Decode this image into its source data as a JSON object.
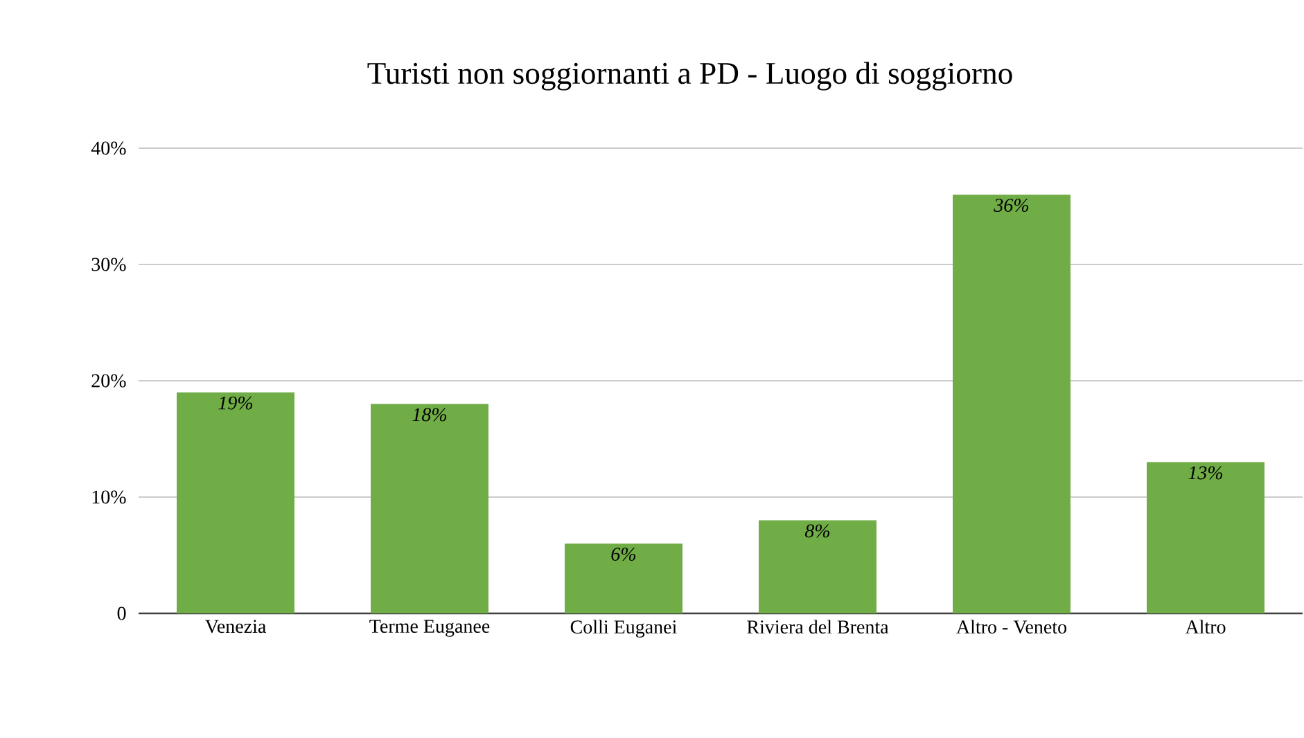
{
  "chart_data": {
    "type": "bar",
    "title": "Turisti non soggiornanti a PD - Luogo di soggiorno",
    "categories": [
      "Venezia",
      "Terme Euganee",
      "Colli Euganei",
      "Riviera del Brenta",
      "Altro - Veneto",
      "Altro"
    ],
    "values": [
      19,
      18,
      6,
      8,
      36,
      13
    ],
    "value_labels": [
      "19%",
      "18%",
      "6%",
      "8%",
      "36%",
      "13%"
    ],
    "color": "#70ad47",
    "ylim": [
      0,
      40
    ],
    "yticks": [
      {
        "value": 0,
        "label": "0"
      },
      {
        "value": 10,
        "label": "10%"
      },
      {
        "value": 20,
        "label": "20%"
      },
      {
        "value": 30,
        "label": "30%"
      },
      {
        "value": 40,
        "label": "40%"
      }
    ],
    "grid": "y"
  }
}
